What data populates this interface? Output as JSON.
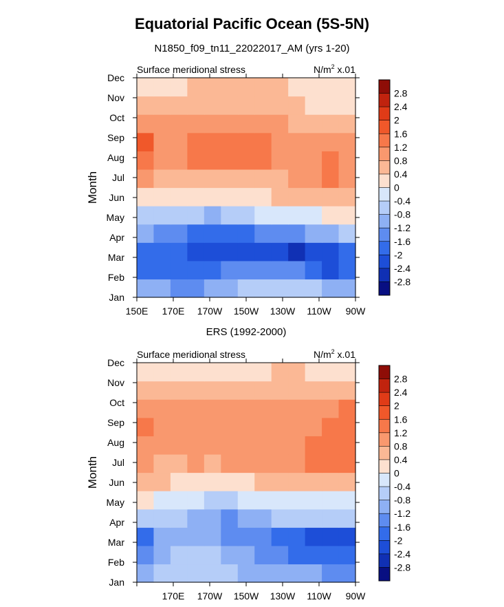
{
  "figure": {
    "title": "Equatorial Pacific Ocean (5S-5N)",
    "subtitle": "N1850_f09_tn11_22022017_AM (yrs 1-20)"
  },
  "colorbar": {
    "levels": [
      "2.8",
      "2.4",
      "2",
      "1.6",
      "1.2",
      "0.8",
      "0.4",
      "0",
      "-0.4",
      "-0.8",
      "-1.2",
      "-1.6",
      "-2",
      "-2.4",
      "-2.8"
    ],
    "colors": [
      "#8e0d07",
      "#c0230e",
      "#e03b17",
      "#f0582a",
      "#f7784a",
      "#f9986e",
      "#fbb895",
      "#fde0cf",
      "#d8e7fb",
      "#b5cdf8",
      "#8eb0f4",
      "#5e8cf0",
      "#336cea",
      "#1d4ed8",
      "#1030b4",
      "#080f82"
    ]
  },
  "chart_data": [
    {
      "type": "heatmap",
      "panel_title": "",
      "left_label": "Surface meridional stress",
      "right_label": "N/m",
      "right_label_sup": "2",
      "right_label_suffix": " x.01",
      "ylabel": "Month",
      "xlabel": "",
      "x_ticks": [
        "150E",
        "170E",
        "170W",
        "150W",
        "130W",
        "110W",
        "90W"
      ],
      "y_ticks": [
        "Jan",
        "Feb",
        "Mar",
        "Apr",
        "May",
        "Jun",
        "Jul",
        "Aug",
        "Sep",
        "Oct",
        "Nov",
        "Dec"
      ],
      "x_lon": [
        150,
        160,
        170,
        180,
        190,
        200,
        210,
        220,
        230,
        240,
        250,
        260,
        270
      ],
      "months": [
        "Jan",
        "Feb",
        "Mar",
        "Apr",
        "May",
        "Jun",
        "Jul",
        "Aug",
        "Sep",
        "Oct",
        "Nov",
        "Dec"
      ],
      "values": [
        [
          -1.0,
          -1.2,
          -1.6,
          -1.4,
          -1.2,
          -1.0,
          -0.8,
          -0.8,
          -0.6,
          -0.6,
          -0.8,
          -1.0,
          -1.2
        ],
        [
          -1.8,
          -1.8,
          -2.0,
          -2.0,
          -1.8,
          -1.6,
          -1.6,
          -1.4,
          -1.4,
          -1.6,
          -1.8,
          -2.2,
          -2.0
        ],
        [
          -1.8,
          -2.0,
          -2.0,
          -2.1,
          -2.1,
          -2.2,
          -2.2,
          -2.2,
          -2.4,
          -2.5,
          -2.4,
          -2.2,
          -1.8
        ],
        [
          -1.2,
          -1.4,
          -1.6,
          -1.8,
          -1.8,
          -1.8,
          -1.8,
          -1.6,
          -1.6,
          -1.4,
          -1.2,
          -1.0,
          -0.8
        ],
        [
          -0.6,
          -0.6,
          -0.8,
          -0.8,
          -1.0,
          -0.8,
          -0.6,
          -0.4,
          -0.3,
          -0.2,
          -0.1,
          0.1,
          0.2
        ],
        [
          0.2,
          0.2,
          0.1,
          0.0,
          0.0,
          0.0,
          0.2,
          0.3,
          0.4,
          0.5,
          0.6,
          0.6,
          0.6
        ],
        [
          0.8,
          0.6,
          0.6,
          0.6,
          0.6,
          0.6,
          0.6,
          0.6,
          0.6,
          0.8,
          1.0,
          1.3,
          1.0
        ],
        [
          1.4,
          1.0,
          1.0,
          1.2,
          1.4,
          1.4,
          1.4,
          1.4,
          1.0,
          1.0,
          1.0,
          1.4,
          1.0
        ],
        [
          1.6,
          1.0,
          1.0,
          1.4,
          1.4,
          1.4,
          1.4,
          1.2,
          1.0,
          0.8,
          0.8,
          0.8,
          0.8
        ],
        [
          1.0,
          0.8,
          0.8,
          1.0,
          1.0,
          1.0,
          1.0,
          0.8,
          0.8,
          0.6,
          0.6,
          0.6,
          0.6
        ],
        [
          0.6,
          0.6,
          0.6,
          0.6,
          0.6,
          0.6,
          0.6,
          0.4,
          0.4,
          0.4,
          0.3,
          0.2,
          0.2
        ],
        [
          0.2,
          0.2,
          0.2,
          0.4,
          0.4,
          0.4,
          0.4,
          0.4,
          0.4,
          0.2,
          0.2,
          0.0,
          0.0
        ]
      ]
    },
    {
      "type": "heatmap",
      "panel_title": "ERS (1992-2000)",
      "left_label": "Surface meridional stress",
      "right_label": "N/m",
      "right_label_sup": "2",
      "right_label_suffix": " x.01",
      "ylabel": "Month",
      "xlabel": "",
      "x_ticks": [
        "",
        "170E",
        "170W",
        "150W",
        "130W",
        "110W",
        "90W"
      ],
      "y_ticks": [
        "Jan",
        "Feb",
        "Mar",
        "Apr",
        "May",
        "Jun",
        "Jul",
        "Aug",
        "Sep",
        "Oct",
        "Nov",
        "Dec"
      ],
      "x_lon": [
        150,
        160,
        170,
        180,
        190,
        200,
        210,
        220,
        230,
        240,
        250,
        260,
        270
      ],
      "months": [
        "Jan",
        "Feb",
        "Mar",
        "Apr",
        "May",
        "Jun",
        "Jul",
        "Aug",
        "Sep",
        "Oct",
        "Nov",
        "Dec"
      ],
      "values": [
        [
          -1.0,
          -0.8,
          -0.8,
          -0.6,
          -0.6,
          -0.8,
          -1.0,
          -1.0,
          -1.0,
          -1.2,
          -1.2,
          -1.4,
          -1.4
        ],
        [
          -1.4,
          -1.0,
          -0.8,
          -0.8,
          -0.8,
          -1.0,
          -1.2,
          -1.4,
          -1.6,
          -1.8,
          -2.0,
          -2.0,
          -1.8
        ],
        [
          -1.8,
          -1.2,
          -1.0,
          -1.0,
          -1.2,
          -1.4,
          -1.4,
          -1.6,
          -1.8,
          -2.0,
          -2.2,
          -2.3,
          -2.2
        ],
        [
          -0.6,
          -0.6,
          -0.8,
          -1.0,
          -1.2,
          -1.4,
          -1.2,
          -1.0,
          -0.8,
          -0.8,
          -0.6,
          -0.6,
          -0.6
        ],
        [
          0.0,
          -0.2,
          -0.2,
          -0.4,
          -0.6,
          -0.6,
          -0.4,
          -0.3,
          -0.2,
          -0.2,
          -0.1,
          -0.2,
          -0.4
        ],
        [
          0.4,
          0.4,
          0.2,
          0.2,
          0.1,
          0.2,
          0.3,
          0.4,
          0.4,
          0.4,
          0.4,
          0.4,
          0.4
        ],
        [
          0.8,
          0.6,
          0.6,
          0.8,
          0.6,
          0.8,
          0.8,
          0.8,
          0.8,
          0.8,
          1.2,
          1.4,
          1.4
        ],
        [
          1.0,
          0.8,
          0.8,
          1.0,
          1.0,
          1.0,
          0.8,
          1.0,
          1.0,
          1.0,
          1.4,
          1.4,
          1.2
        ],
        [
          1.2,
          0.8,
          1.0,
          1.0,
          1.0,
          1.0,
          1.0,
          1.0,
          1.0,
          1.0,
          1.0,
          1.2,
          1.4
        ],
        [
          1.0,
          0.8,
          0.8,
          0.8,
          0.8,
          0.8,
          0.8,
          0.8,
          1.0,
          1.0,
          0.8,
          1.0,
          1.2
        ],
        [
          0.6,
          0.6,
          0.6,
          0.4,
          0.6,
          0.6,
          0.6,
          0.6,
          0.6,
          0.6,
          0.6,
          0.6,
          0.6
        ],
        [
          0.2,
          0.0,
          0.0,
          0.0,
          0.2,
          0.2,
          0.2,
          0.2,
          0.4,
          0.4,
          0.2,
          0.2,
          0.2
        ]
      ]
    }
  ]
}
